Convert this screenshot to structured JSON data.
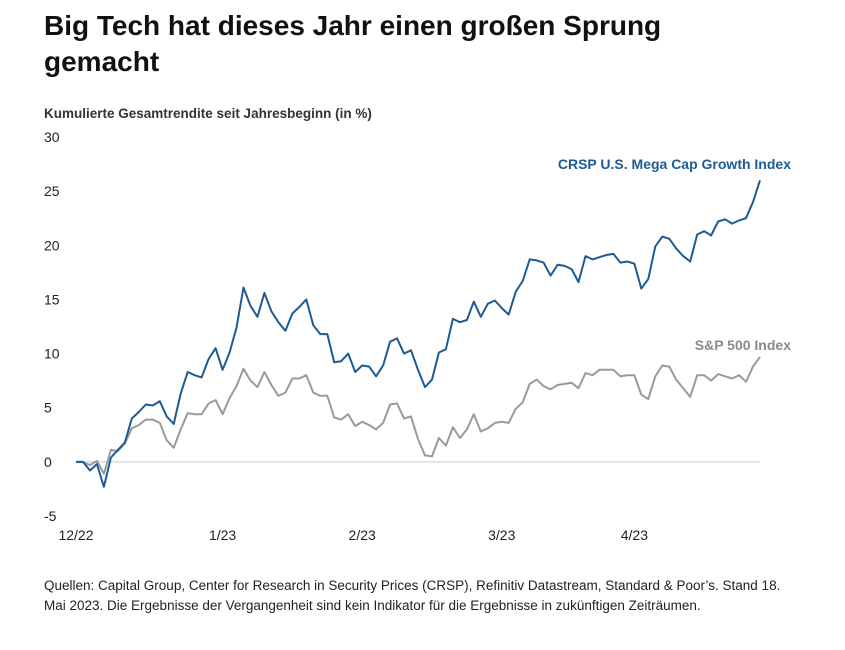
{
  "header": {
    "title": "Big Tech hat dieses Jahr einen großen Sprung gemacht"
  },
  "footer": {
    "source": "Quellen: Capital Group, Center for Research in Security Prices (CRSP), Refinitiv Datastream, Standard & Poor’s. Stand 18. Mai 2023. Die Ergebnisse der Vergangenheit sind kein Indikator für die Ergebnisse in zukünftigen Zeiträumen."
  },
  "chart_data": {
    "type": "line",
    "title": "Big Tech hat dieses Jahr einen großen Sprung gemacht",
    "ylabel": "Kumulierte Gesamtrendite seit Jahresbeginn (in %)",
    "xlabel": "",
    "ylim": [
      -5,
      30
    ],
    "yticks": [
      -5,
      0,
      5,
      10,
      15,
      20,
      25,
      30
    ],
    "xlim": [
      0,
      98
    ],
    "xticks": [
      {
        "label": "12/22",
        "x": 0
      },
      {
        "label": "1/23",
        "x": 21
      },
      {
        "label": "2/23",
        "x": 41
      },
      {
        "label": "3/23",
        "x": 61
      },
      {
        "label": "4/23",
        "x": 80
      }
    ],
    "grid": false,
    "colors": {
      "mega_cap": "#1d5b94",
      "sp500": "#9a9a9a",
      "axis": "#cccccc"
    },
    "series": [
      {
        "name": "CRSP U.S. Mega Cap Growth Index",
        "key": "mega_cap",
        "values": [
          0.0,
          0.0,
          -0.8,
          -0.2,
          -2.3,
          0.4,
          1.1,
          1.8,
          4.0,
          4.6,
          5.3,
          5.2,
          5.6,
          4.2,
          3.5,
          6.3,
          8.3,
          8.0,
          7.8,
          9.5,
          10.5,
          8.5,
          10.1,
          12.4,
          16.1,
          14.4,
          13.4,
          15.6,
          13.9,
          12.9,
          12.1,
          13.7,
          14.3,
          15.0,
          12.6,
          11.8,
          11.8,
          9.2,
          9.3,
          10.0,
          8.3,
          8.9,
          8.8,
          7.9,
          8.9,
          11.1,
          11.4,
          10.0,
          10.3,
          8.5,
          6.9,
          7.6,
          10.1,
          10.4,
          13.2,
          12.9,
          13.1,
          14.8,
          13.4,
          14.6,
          14.9,
          14.2,
          13.6,
          15.7,
          16.7,
          18.7,
          18.6,
          18.4,
          17.2,
          18.2,
          18.1,
          17.8,
          16.6,
          19.0,
          18.7,
          18.9,
          19.1,
          19.2,
          18.4,
          18.5,
          18.3,
          16.0,
          16.9,
          19.9,
          20.8,
          20.6,
          19.7,
          19.0,
          18.5,
          21.0,
          21.3,
          20.9,
          22.2,
          22.4,
          22.0,
          22.3,
          22.5,
          24.0,
          26.0
        ]
      },
      {
        "name": "S&P 500 Index",
        "key": "sp500",
        "values": [
          0.0,
          0.0,
          -0.3,
          0.1,
          -1.1,
          1.1,
          1.0,
          1.7,
          3.1,
          3.4,
          3.9,
          3.9,
          3.6,
          2.0,
          1.3,
          3.0,
          4.5,
          4.4,
          4.4,
          5.4,
          5.7,
          4.4,
          5.9,
          7.0,
          8.6,
          7.5,
          6.9,
          8.3,
          7.1,
          6.1,
          6.4,
          7.7,
          7.7,
          8.0,
          6.4,
          6.1,
          6.1,
          4.1,
          3.9,
          4.4,
          3.3,
          3.7,
          3.4,
          3.0,
          3.6,
          5.3,
          5.4,
          4.0,
          4.2,
          2.1,
          0.6,
          0.5,
          2.2,
          1.5,
          3.2,
          2.2,
          3.0,
          4.4,
          2.8,
          3.1,
          3.6,
          3.7,
          3.6,
          4.9,
          5.5,
          7.2,
          7.6,
          7.0,
          6.7,
          7.1,
          7.2,
          7.3,
          6.8,
          8.2,
          8.0,
          8.5,
          8.5,
          8.5,
          7.9,
          8.0,
          8.0,
          6.2,
          5.8,
          7.9,
          8.9,
          8.8,
          7.6,
          6.8,
          6.0,
          8.0,
          8.0,
          7.5,
          8.1,
          7.9,
          7.7,
          8.0,
          7.4,
          8.8,
          9.7
        ]
      }
    ]
  }
}
